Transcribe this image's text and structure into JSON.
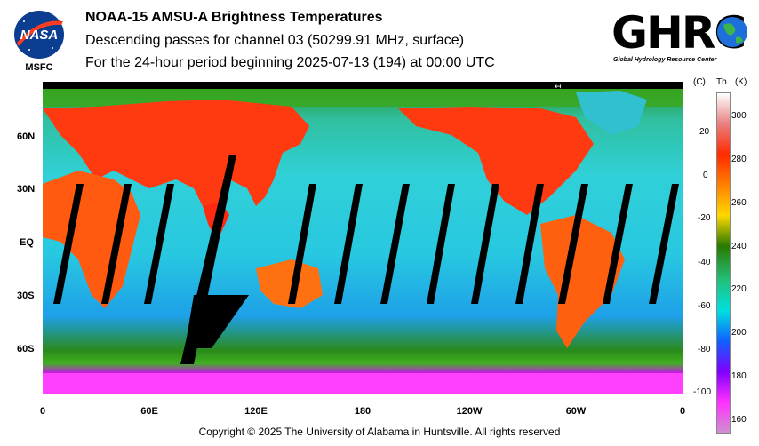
{
  "title": "NOAA-15 AMSU-A Brightness Temperatures",
  "subtitle": "Descending passes for channel 03 (50299.91 MHz, surface)",
  "period": "For the 24-hour period beginning 2025-07-13 (194) at 00:00 UTC",
  "logos": {
    "nasa_text": "NASA",
    "nasa_sub": "MSFC",
    "ghrc_text": "GHRC",
    "ghrc_sub": "Global Hydrology Resource Center"
  },
  "map": {
    "lat_labels": [
      "60N",
      "30N",
      "EQ",
      "30S",
      "60S"
    ],
    "lon_labels": [
      "0",
      "60E",
      "120E",
      "180",
      "120W",
      "60W",
      "0"
    ]
  },
  "colorbar": {
    "unit_c": "(C)",
    "unit_tb": "Tb",
    "unit_k": "(K)",
    "celsius_ticks": [
      "20",
      "0",
      "-20",
      "-40",
      "-60",
      "-80",
      "-100"
    ],
    "kelvin_ticks": [
      "300",
      "280",
      "260",
      "240",
      "220",
      "200",
      "180",
      "160"
    ],
    "colors": [
      "#ffffff",
      "#e88080",
      "#ff2a00",
      "#ff8000",
      "#ffd800",
      "#2a7a00",
      "#22c07a",
      "#00e0e0",
      "#1060ff",
      "#8000ff",
      "#ff30ff",
      "#d090d0"
    ]
  },
  "copyright": "Copyright © 2025 The University of Alabama in Huntsville.  All rights reserved"
}
